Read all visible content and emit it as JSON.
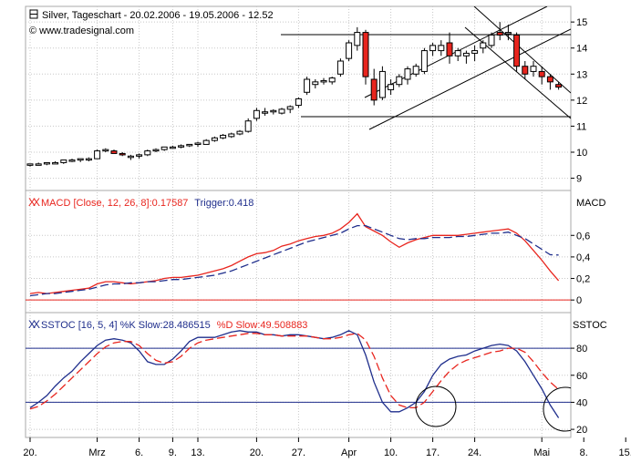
{
  "chart_data": [
    {
      "type": "candlestick",
      "header": {
        "title": "Silver, Tageschart - 20.02.2006 - 19.05.2006 - 12.52",
        "copyright": "© www.tradesignal.com"
      },
      "yticks": [
        9,
        10,
        11,
        12,
        13,
        14,
        15
      ],
      "ylim": [
        8.6,
        15.6
      ],
      "candles": [
        [
          9.5,
          9.55,
          9.45,
          9.55
        ],
        [
          9.55,
          9.6,
          9.5,
          9.55
        ],
        [
          9.55,
          9.6,
          9.5,
          9.6
        ],
        [
          9.6,
          9.65,
          9.55,
          9.6
        ],
        [
          9.6,
          9.7,
          9.55,
          9.7
        ],
        [
          9.7,
          9.75,
          9.62,
          9.7
        ],
        [
          9.7,
          9.75,
          9.62,
          9.75
        ],
        [
          9.75,
          9.8,
          9.65,
          9.75
        ],
        [
          9.75,
          10.1,
          9.75,
          10.05
        ],
        [
          10.05,
          10.15,
          10.0,
          10.1
        ],
        [
          10.05,
          10.1,
          9.95,
          9.95
        ],
        [
          9.95,
          10.0,
          9.85,
          9.9
        ],
        [
          9.8,
          9.9,
          9.7,
          9.85
        ],
        [
          9.85,
          9.95,
          9.75,
          9.9
        ],
        [
          9.9,
          10.1,
          9.85,
          10.05
        ],
        [
          10.05,
          10.15,
          10.0,
          10.1
        ],
        [
          10.1,
          10.2,
          10.05,
          10.2
        ],
        [
          10.2,
          10.25,
          10.15,
          10.2
        ],
        [
          10.2,
          10.3,
          10.15,
          10.25
        ],
        [
          10.25,
          10.3,
          10.2,
          10.3
        ],
        [
          10.3,
          10.4,
          10.2,
          10.35
        ],
        [
          10.3,
          10.5,
          10.3,
          10.45
        ],
        [
          10.45,
          10.6,
          10.4,
          10.55
        ],
        [
          10.55,
          10.7,
          10.5,
          10.65
        ],
        [
          10.6,
          10.75,
          10.55,
          10.7
        ],
        [
          10.7,
          10.85,
          10.65,
          10.8
        ],
        [
          10.8,
          11.3,
          10.75,
          11.2
        ],
        [
          11.3,
          11.7,
          11.2,
          11.6
        ],
        [
          11.5,
          11.7,
          11.4,
          11.55
        ],
        [
          11.55,
          11.65,
          11.45,
          11.6
        ],
        [
          11.5,
          11.7,
          11.45,
          11.65
        ],
        [
          11.65,
          11.8,
          11.5,
          11.75
        ],
        [
          11.8,
          12.1,
          11.7,
          12.05
        ],
        [
          12.3,
          12.9,
          12.2,
          12.8
        ],
        [
          12.6,
          12.8,
          12.45,
          12.7
        ],
        [
          12.7,
          12.85,
          12.6,
          12.75
        ],
        [
          12.7,
          12.9,
          12.6,
          12.85
        ],
        [
          13.0,
          13.6,
          12.9,
          13.5
        ],
        [
          13.6,
          14.3,
          13.5,
          14.2
        ],
        [
          14.1,
          14.8,
          13.9,
          14.6
        ],
        [
          14.6,
          14.7,
          12.6,
          12.9
        ],
        [
          12.8,
          13.2,
          11.8,
          12.0
        ],
        [
          12.1,
          13.3,
          12.0,
          13.1
        ],
        [
          12.4,
          12.8,
          12.2,
          12.6
        ],
        [
          12.6,
          13.0,
          12.5,
          12.9
        ],
        [
          12.8,
          13.3,
          12.6,
          13.2
        ],
        [
          13.0,
          13.4,
          12.9,
          13.3
        ],
        [
          13.1,
          14.0,
          13.0,
          13.9
        ],
        [
          13.9,
          14.2,
          13.7,
          14.1
        ],
        [
          13.9,
          14.3,
          13.7,
          14.1
        ],
        [
          14.2,
          14.6,
          13.4,
          13.7
        ],
        [
          13.7,
          14.0,
          13.5,
          13.9
        ],
        [
          13.7,
          13.9,
          13.4,
          13.8
        ],
        [
          13.8,
          14.1,
          13.5,
          13.9
        ],
        [
          14.0,
          14.3,
          13.8,
          14.2
        ],
        [
          14.1,
          14.6,
          14.0,
          14.5
        ],
        [
          14.6,
          15.0,
          14.3,
          14.5
        ],
        [
          14.6,
          14.9,
          14.3,
          14.6
        ],
        [
          14.5,
          14.6,
          13.1,
          13.3
        ],
        [
          13.3,
          13.5,
          12.8,
          13.0
        ],
        [
          13.1,
          13.5,
          12.9,
          13.3
        ],
        [
          13.1,
          13.3,
          12.6,
          12.9
        ],
        [
          12.9,
          13.0,
          12.4,
          12.7
        ],
        [
          12.6,
          12.7,
          12.4,
          12.5
        ]
      ]
    },
    {
      "type": "line",
      "header": {
        "label": "MACD [Close, 12, 26, 8]:0.17587",
        "trigger_label": "Trigger:0.418"
      },
      "axis_title": "MACD",
      "yticks": [
        0,
        0.2,
        0.4,
        0.6
      ],
      "ytick_labels": [
        "0",
        "0,2",
        "0,4",
        "0,6"
      ],
      "ylim": [
        -0.1,
        1.0
      ],
      "series": [
        {
          "name": "MACD",
          "color": "#e8251e",
          "style": "solid",
          "values": [
            0.06,
            0.07,
            0.06,
            0.07,
            0.08,
            0.09,
            0.1,
            0.11,
            0.15,
            0.17,
            0.17,
            0.16,
            0.15,
            0.16,
            0.17,
            0.18,
            0.2,
            0.21,
            0.21,
            0.22,
            0.23,
            0.25,
            0.27,
            0.29,
            0.32,
            0.36,
            0.4,
            0.43,
            0.44,
            0.46,
            0.5,
            0.52,
            0.55,
            0.57,
            0.59,
            0.6,
            0.62,
            0.66,
            0.72,
            0.8,
            0.68,
            0.64,
            0.6,
            0.54,
            0.49,
            0.53,
            0.56,
            0.58,
            0.6,
            0.6,
            0.6,
            0.6,
            0.61,
            0.62,
            0.63,
            0.64,
            0.65,
            0.66,
            0.62,
            0.55,
            0.46,
            0.37,
            0.27,
            0.18
          ]
        },
        {
          "name": "Trigger",
          "color": "#1f2e8c",
          "style": "dashed",
          "values": [
            0.04,
            0.05,
            0.06,
            0.06,
            0.07,
            0.08,
            0.09,
            0.1,
            0.12,
            0.14,
            0.15,
            0.15,
            0.16,
            0.16,
            0.17,
            0.17,
            0.18,
            0.19,
            0.19,
            0.2,
            0.21,
            0.22,
            0.23,
            0.25,
            0.27,
            0.3,
            0.33,
            0.36,
            0.39,
            0.42,
            0.45,
            0.48,
            0.51,
            0.54,
            0.56,
            0.58,
            0.6,
            0.62,
            0.66,
            0.69,
            0.69,
            0.66,
            0.63,
            0.6,
            0.57,
            0.56,
            0.57,
            0.57,
            0.58,
            0.58,
            0.58,
            0.59,
            0.59,
            0.6,
            0.61,
            0.62,
            0.62,
            0.63,
            0.6,
            0.57,
            0.52,
            0.47,
            0.42,
            0.418
          ]
        }
      ]
    },
    {
      "type": "line",
      "header": {
        "label": "SSTOC [16, 5, 4] %K Slow:28.486515",
        "d_label": "%D Slow:49.508883"
      },
      "axis_title": "SSTOC",
      "yticks": [
        20,
        40,
        60,
        80
      ],
      "ylim": [
        14,
        105
      ],
      "hlines": [
        40,
        80
      ],
      "series": [
        {
          "name": "%K Slow",
          "color": "#1f2e8c",
          "style": "solid",
          "values": [
            36,
            40,
            45,
            52,
            58,
            63,
            70,
            76,
            82,
            86,
            87,
            86,
            84,
            78,
            70,
            68,
            68,
            72,
            78,
            85,
            88,
            88,
            88,
            90,
            92,
            93,
            92,
            92,
            90,
            90,
            89,
            90,
            90,
            89,
            88,
            87,
            88,
            90,
            93,
            90,
            75,
            55,
            40,
            33,
            33,
            36,
            40,
            48,
            60,
            68,
            72,
            74,
            75,
            78,
            80,
            82,
            83,
            82,
            78,
            70,
            60,
            50,
            38,
            28.5
          ]
        },
        {
          "name": "%D Slow",
          "color": "#e8251e",
          "style": "dashed",
          "values": [
            35,
            37,
            41,
            46,
            52,
            58,
            64,
            70,
            76,
            81,
            84,
            85,
            85,
            82,
            76,
            71,
            69,
            70,
            74,
            80,
            84,
            86,
            87,
            88,
            89,
            90,
            91,
            91,
            90,
            90,
            89,
            89,
            89,
            89,
            88,
            87,
            87,
            88,
            90,
            91,
            86,
            74,
            58,
            45,
            38,
            36,
            36,
            40,
            48,
            56,
            63,
            68,
            71,
            73,
            75,
            77,
            78,
            80,
            80,
            77,
            70,
            62,
            55,
            49.5
          ]
        }
      ],
      "xtick_labels": [
        "20.",
        "Mrz",
        "6.",
        "9.",
        "13.",
        "20.",
        "27.",
        "Apr",
        "10.",
        "17.",
        "24.",
        "Mai",
        "8.",
        "15."
      ]
    }
  ]
}
